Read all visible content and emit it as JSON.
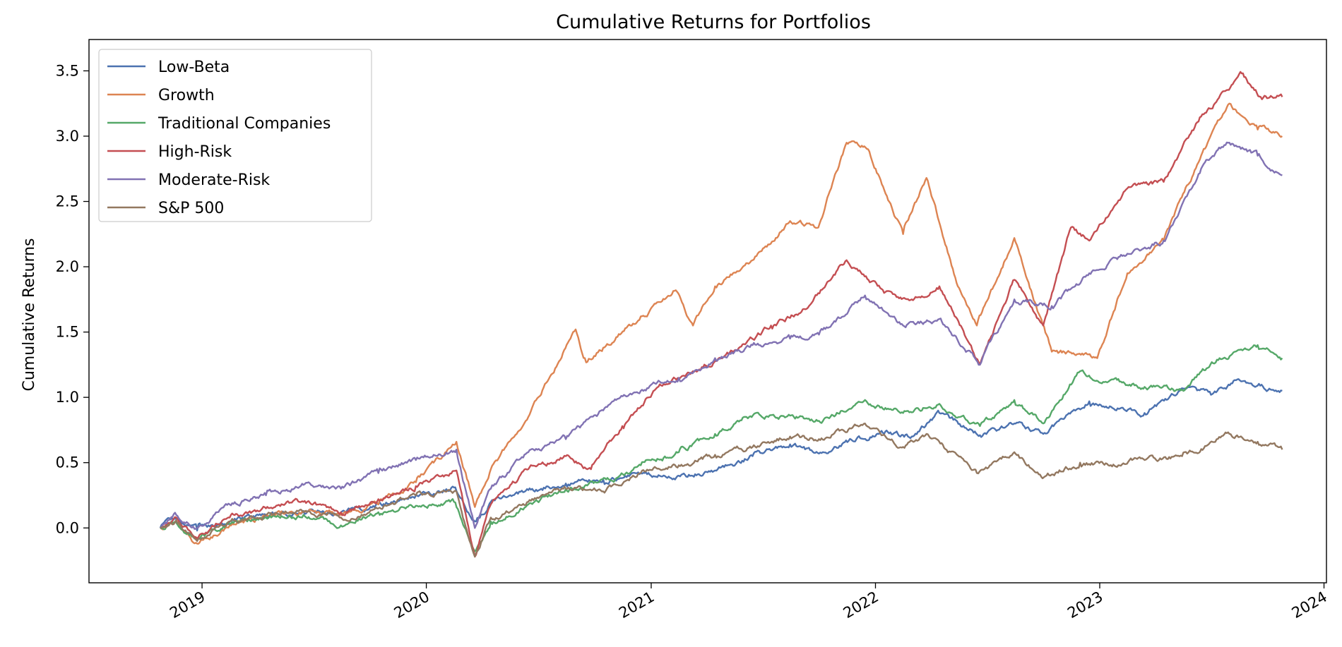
{
  "chart_data": {
    "type": "line",
    "title": "Cumulative Returns for Portfolios",
    "xlabel": "",
    "ylabel": "Cumulative Returns",
    "x_range": [
      "2018-07-01",
      "2024-01-05"
    ],
    "ylim": [
      -0.42,
      3.74
    ],
    "y_ticks": [
      0.0,
      0.5,
      1.0,
      1.5,
      2.0,
      2.5,
      3.0,
      3.5
    ],
    "y_tick_labels": [
      "0.0",
      "0.5",
      "1.0",
      "1.5",
      "2.0",
      "2.5",
      "3.0",
      "3.5"
    ],
    "x_ticks": [
      "2019-01-01",
      "2020-01-01",
      "2021-01-01",
      "2022-01-01",
      "2023-01-01",
      "2024-01-01"
    ],
    "x_tick_labels": [
      "2019",
      "2020",
      "2021",
      "2022",
      "2023",
      "2024"
    ],
    "grid": false,
    "legend_position": "top-left",
    "series": [
      {
        "name": "Low-Beta",
        "color": "#4c72b0",
        "points": [
          [
            "2018-10-25",
            0.0
          ],
          [
            "2018-11-15",
            0.06
          ],
          [
            "2018-12-24",
            -0.02
          ],
          [
            "2019-02-15",
            0.05
          ],
          [
            "2019-04-15",
            0.1
          ],
          [
            "2019-06-15",
            0.13
          ],
          [
            "2019-08-15",
            0.12
          ],
          [
            "2019-10-15",
            0.18
          ],
          [
            "2019-12-15",
            0.25
          ],
          [
            "2020-02-15",
            0.31
          ],
          [
            "2020-03-20",
            0.05
          ],
          [
            "2020-04-15",
            0.2
          ],
          [
            "2020-06-15",
            0.29
          ],
          [
            "2020-08-15",
            0.34
          ],
          [
            "2020-10-15",
            0.37
          ],
          [
            "2020-12-15",
            0.42
          ],
          [
            "2021-02-15",
            0.4
          ],
          [
            "2021-04-15",
            0.44
          ],
          [
            "2021-06-15",
            0.55
          ],
          [
            "2021-08-15",
            0.64
          ],
          [
            "2021-10-01",
            0.57
          ],
          [
            "2021-12-01",
            0.68
          ],
          [
            "2022-01-15",
            0.72
          ],
          [
            "2022-03-01",
            0.7
          ],
          [
            "2022-04-15",
            0.88
          ],
          [
            "2022-06-20",
            0.71
          ],
          [
            "2022-08-15",
            0.8
          ],
          [
            "2022-10-01",
            0.72
          ],
          [
            "2022-12-15",
            0.97
          ],
          [
            "2023-03-15",
            0.88
          ],
          [
            "2023-05-15",
            1.07
          ],
          [
            "2023-07-01",
            1.02
          ],
          [
            "2023-08-15",
            1.14
          ],
          [
            "2023-09-15",
            1.09
          ],
          [
            "2023-10-25",
            1.05
          ]
        ]
      },
      {
        "name": "Growth",
        "color": "#dd8452",
        "points": [
          [
            "2018-10-25",
            0.0
          ],
          [
            "2018-11-20",
            0.05
          ],
          [
            "2018-12-24",
            -0.12
          ],
          [
            "2019-02-15",
            0.02
          ],
          [
            "2019-04-15",
            0.1
          ],
          [
            "2019-06-15",
            0.12
          ],
          [
            "2019-08-15",
            0.1
          ],
          [
            "2019-10-15",
            0.18
          ],
          [
            "2019-12-15",
            0.35
          ],
          [
            "2020-02-19",
            0.66
          ],
          [
            "2020-03-20",
            0.16
          ],
          [
            "2020-04-15",
            0.45
          ],
          [
            "2020-06-15",
            0.85
          ],
          [
            "2020-08-31",
            1.52
          ],
          [
            "2020-09-15",
            1.3
          ],
          [
            "2020-10-15",
            1.38
          ],
          [
            "2020-12-15",
            1.62
          ],
          [
            "2021-02-10",
            1.82
          ],
          [
            "2021-03-10",
            1.55
          ],
          [
            "2021-04-15",
            1.85
          ],
          [
            "2021-06-15",
            2.05
          ],
          [
            "2021-08-15",
            2.35
          ],
          [
            "2021-09-30",
            2.3
          ],
          [
            "2021-11-15",
            2.95
          ],
          [
            "2021-12-20",
            2.9
          ],
          [
            "2022-02-15",
            2.25
          ],
          [
            "2022-03-25",
            2.68
          ],
          [
            "2022-05-15",
            1.85
          ],
          [
            "2022-06-15",
            1.55
          ],
          [
            "2022-08-15",
            2.22
          ],
          [
            "2022-10-15",
            1.35
          ],
          [
            "2022-12-28",
            1.3
          ],
          [
            "2023-02-15",
            1.95
          ],
          [
            "2023-04-15",
            2.2
          ],
          [
            "2023-06-15",
            2.85
          ],
          [
            "2023-07-31",
            3.25
          ],
          [
            "2023-09-15",
            3.05
          ],
          [
            "2023-10-25",
            3.0
          ]
        ]
      },
      {
        "name": "Traditional Companies",
        "color": "#55a868",
        "points": [
          [
            "2018-10-25",
            0.0
          ],
          [
            "2018-11-20",
            0.04
          ],
          [
            "2018-12-24",
            -0.08
          ],
          [
            "2019-02-15",
            0.03
          ],
          [
            "2019-04-15",
            0.08
          ],
          [
            "2019-06-15",
            0.1
          ],
          [
            "2019-08-15",
            0.02
          ],
          [
            "2019-10-15",
            0.12
          ],
          [
            "2019-12-15",
            0.17
          ],
          [
            "2020-02-15",
            0.2
          ],
          [
            "2020-03-20",
            -0.18
          ],
          [
            "2020-04-15",
            0.05
          ],
          [
            "2020-06-15",
            0.18
          ],
          [
            "2020-08-15",
            0.3
          ],
          [
            "2020-10-30",
            0.36
          ],
          [
            "2020-12-15",
            0.48
          ],
          [
            "2021-02-15",
            0.58
          ],
          [
            "2021-04-15",
            0.72
          ],
          [
            "2021-06-01",
            0.85
          ],
          [
            "2021-08-15",
            0.86
          ],
          [
            "2021-10-01",
            0.82
          ],
          [
            "2021-12-15",
            0.98
          ],
          [
            "2022-02-15",
            0.88
          ],
          [
            "2022-04-15",
            0.95
          ],
          [
            "2022-06-20",
            0.78
          ],
          [
            "2022-08-15",
            0.98
          ],
          [
            "2022-10-01",
            0.8
          ],
          [
            "2022-11-30",
            1.2
          ],
          [
            "2023-01-15",
            1.12
          ],
          [
            "2023-03-15",
            1.08
          ],
          [
            "2023-05-15",
            1.06
          ],
          [
            "2023-07-15",
            1.3
          ],
          [
            "2023-09-15",
            1.4
          ],
          [
            "2023-10-25",
            1.3
          ]
        ]
      },
      {
        "name": "High-Risk",
        "color": "#c44e52",
        "points": [
          [
            "2018-10-25",
            0.0
          ],
          [
            "2018-11-20",
            0.08
          ],
          [
            "2018-12-24",
            -0.08
          ],
          [
            "2019-02-15",
            0.08
          ],
          [
            "2019-04-15",
            0.15
          ],
          [
            "2019-06-15",
            0.2
          ],
          [
            "2019-08-15",
            0.12
          ],
          [
            "2019-10-15",
            0.22
          ],
          [
            "2019-12-15",
            0.32
          ],
          [
            "2020-02-19",
            0.44
          ],
          [
            "2020-03-20",
            -0.22
          ],
          [
            "2020-04-15",
            0.18
          ],
          [
            "2020-06-15",
            0.45
          ],
          [
            "2020-08-15",
            0.55
          ],
          [
            "2020-09-25",
            0.45
          ],
          [
            "2020-11-15",
            0.78
          ],
          [
            "2021-01-15",
            1.1
          ],
          [
            "2021-03-10",
            1.2
          ],
          [
            "2021-05-15",
            1.35
          ],
          [
            "2021-07-15",
            1.55
          ],
          [
            "2021-09-15",
            1.7
          ],
          [
            "2021-11-15",
            2.05
          ],
          [
            "2022-01-15",
            1.8
          ],
          [
            "2022-03-01",
            1.75
          ],
          [
            "2022-04-15",
            1.85
          ],
          [
            "2022-06-20",
            1.25
          ],
          [
            "2022-08-15",
            1.9
          ],
          [
            "2022-10-01",
            1.55
          ],
          [
            "2022-11-15",
            2.3
          ],
          [
            "2022-12-15",
            2.2
          ],
          [
            "2023-02-15",
            2.6
          ],
          [
            "2023-04-15",
            2.65
          ],
          [
            "2023-06-15",
            3.15
          ],
          [
            "2023-08-20",
            3.48
          ],
          [
            "2023-09-20",
            3.3
          ],
          [
            "2023-10-25",
            3.3
          ]
        ]
      },
      {
        "name": "Moderate-Risk",
        "color": "#8172b3",
        "points": [
          [
            "2018-10-25",
            0.0
          ],
          [
            "2018-11-20",
            0.1
          ],
          [
            "2018-12-24",
            0.0
          ],
          [
            "2019-02-15",
            0.18
          ],
          [
            "2019-04-15",
            0.25
          ],
          [
            "2019-06-15",
            0.33
          ],
          [
            "2019-08-15",
            0.3
          ],
          [
            "2019-10-15",
            0.42
          ],
          [
            "2019-12-15",
            0.52
          ],
          [
            "2020-02-19",
            0.6
          ],
          [
            "2020-03-20",
            0.0
          ],
          [
            "2020-04-15",
            0.3
          ],
          [
            "2020-06-15",
            0.58
          ],
          [
            "2020-08-15",
            0.68
          ],
          [
            "2020-10-15",
            0.9
          ],
          [
            "2020-12-15",
            1.05
          ],
          [
            "2021-02-15",
            1.15
          ],
          [
            "2021-04-15",
            1.3
          ],
          [
            "2021-06-15",
            1.4
          ],
          [
            "2021-08-15",
            1.45
          ],
          [
            "2021-10-01",
            1.48
          ],
          [
            "2021-12-15",
            1.78
          ],
          [
            "2022-02-15",
            1.55
          ],
          [
            "2022-04-15",
            1.6
          ],
          [
            "2022-06-20",
            1.25
          ],
          [
            "2022-08-15",
            1.75
          ],
          [
            "2022-10-15",
            1.7
          ],
          [
            "2022-12-15",
            1.95
          ],
          [
            "2023-02-15",
            2.1
          ],
          [
            "2023-04-15",
            2.2
          ],
          [
            "2023-06-15",
            2.75
          ],
          [
            "2023-07-31",
            2.95
          ],
          [
            "2023-09-15",
            2.85
          ],
          [
            "2023-10-25",
            2.7
          ]
        ]
      },
      {
        "name": "S&P 500",
        "color": "#937860",
        "points": [
          [
            "2018-10-25",
            0.0
          ],
          [
            "2018-11-20",
            0.06
          ],
          [
            "2018-12-24",
            -0.1
          ],
          [
            "2019-02-15",
            0.05
          ],
          [
            "2019-04-15",
            0.1
          ],
          [
            "2019-06-15",
            0.12
          ],
          [
            "2019-08-15",
            0.08
          ],
          [
            "2019-10-15",
            0.15
          ],
          [
            "2019-12-15",
            0.25
          ],
          [
            "2020-02-19",
            0.28
          ],
          [
            "2020-03-20",
            -0.22
          ],
          [
            "2020-04-15",
            0.08
          ],
          [
            "2020-06-15",
            0.2
          ],
          [
            "2020-08-15",
            0.3
          ],
          [
            "2020-10-15",
            0.28
          ],
          [
            "2020-12-15",
            0.42
          ],
          [
            "2021-02-15",
            0.48
          ],
          [
            "2021-04-15",
            0.56
          ],
          [
            "2021-06-15",
            0.62
          ],
          [
            "2021-08-15",
            0.7
          ],
          [
            "2021-10-01",
            0.68
          ],
          [
            "2021-12-15",
            0.8
          ],
          [
            "2022-02-15",
            0.62
          ],
          [
            "2022-03-25",
            0.72
          ],
          [
            "2022-06-15",
            0.42
          ],
          [
            "2022-08-15",
            0.58
          ],
          [
            "2022-09-30",
            0.38
          ],
          [
            "2022-11-30",
            0.5
          ],
          [
            "2023-01-15",
            0.48
          ],
          [
            "2023-03-15",
            0.52
          ],
          [
            "2023-05-15",
            0.55
          ],
          [
            "2023-07-31",
            0.72
          ],
          [
            "2023-09-15",
            0.66
          ],
          [
            "2023-10-25",
            0.6
          ]
        ]
      }
    ]
  }
}
